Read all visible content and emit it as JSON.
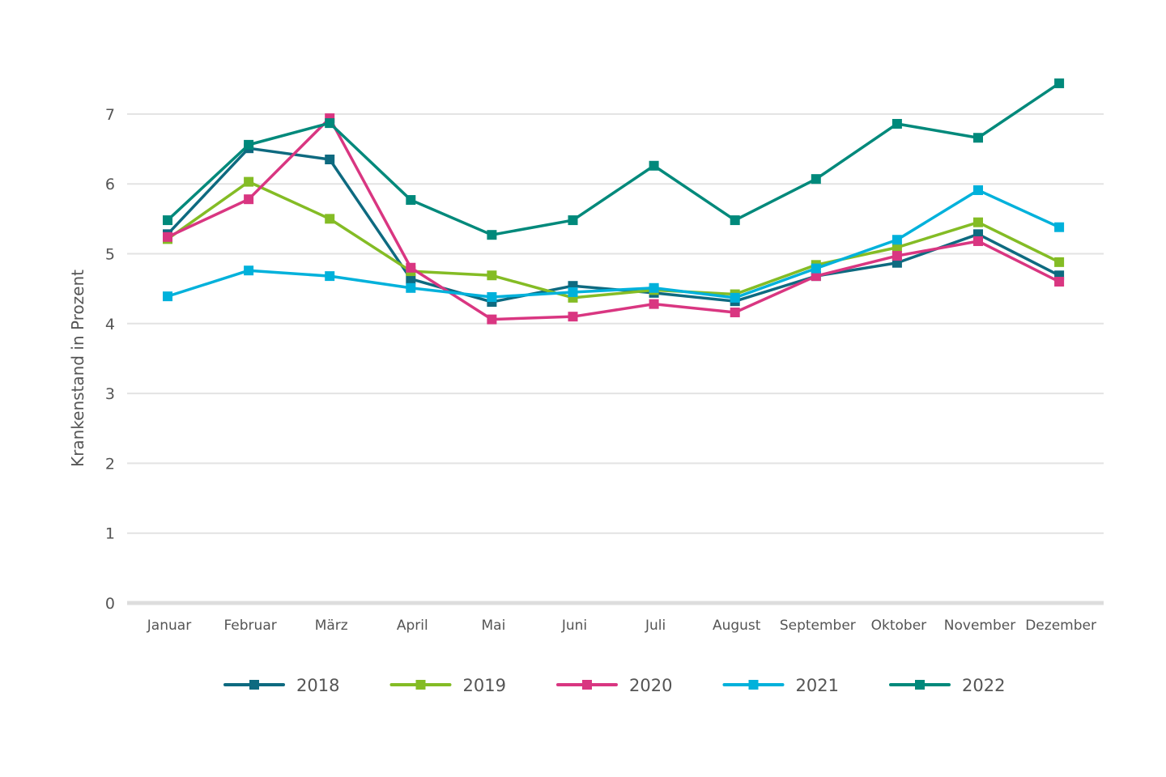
{
  "chart_data": {
    "type": "line",
    "title": "",
    "xlabel": "",
    "ylabel": "Krankenstand in Prozent",
    "ylim": [
      0,
      7.5
    ],
    "yticks": [
      "0",
      "1",
      "2",
      "3",
      "4",
      "5",
      "6",
      "7"
    ],
    "grid": true,
    "legend": "bottom",
    "categories": [
      "Januar",
      "Februar",
      "März",
      "April",
      "Mai",
      "Juni",
      "Juli",
      "August",
      "September",
      "Oktober",
      "November",
      "Dezember"
    ],
    "series": [
      {
        "name": "2018",
        "color": "#0e6a80",
        "values": [
          5.28,
          6.51,
          6.35,
          4.64,
          4.31,
          4.54,
          4.44,
          4.32,
          4.68,
          4.87,
          5.28,
          4.69
        ]
      },
      {
        "name": "2019",
        "color": "#84bc25",
        "values": [
          5.21,
          6.03,
          5.5,
          4.75,
          4.69,
          4.37,
          4.48,
          4.42,
          4.84,
          5.09,
          5.45,
          4.88
        ]
      },
      {
        "name": "2020",
        "color": "#d93681",
        "values": [
          5.24,
          5.78,
          6.94,
          4.8,
          4.06,
          4.1,
          4.28,
          4.16,
          4.68,
          4.97,
          5.18,
          4.6
        ]
      },
      {
        "name": "2021",
        "color": "#00b1db",
        "values": [
          4.39,
          4.76,
          4.68,
          4.51,
          4.38,
          4.45,
          4.51,
          4.37,
          4.79,
          5.2,
          5.91,
          5.38
        ]
      },
      {
        "name": "2022",
        "color": "#00897b",
        "values": [
          5.48,
          6.56,
          6.87,
          5.77,
          5.27,
          5.48,
          6.26,
          5.48,
          6.07,
          6.86,
          6.66,
          7.44
        ]
      }
    ]
  }
}
